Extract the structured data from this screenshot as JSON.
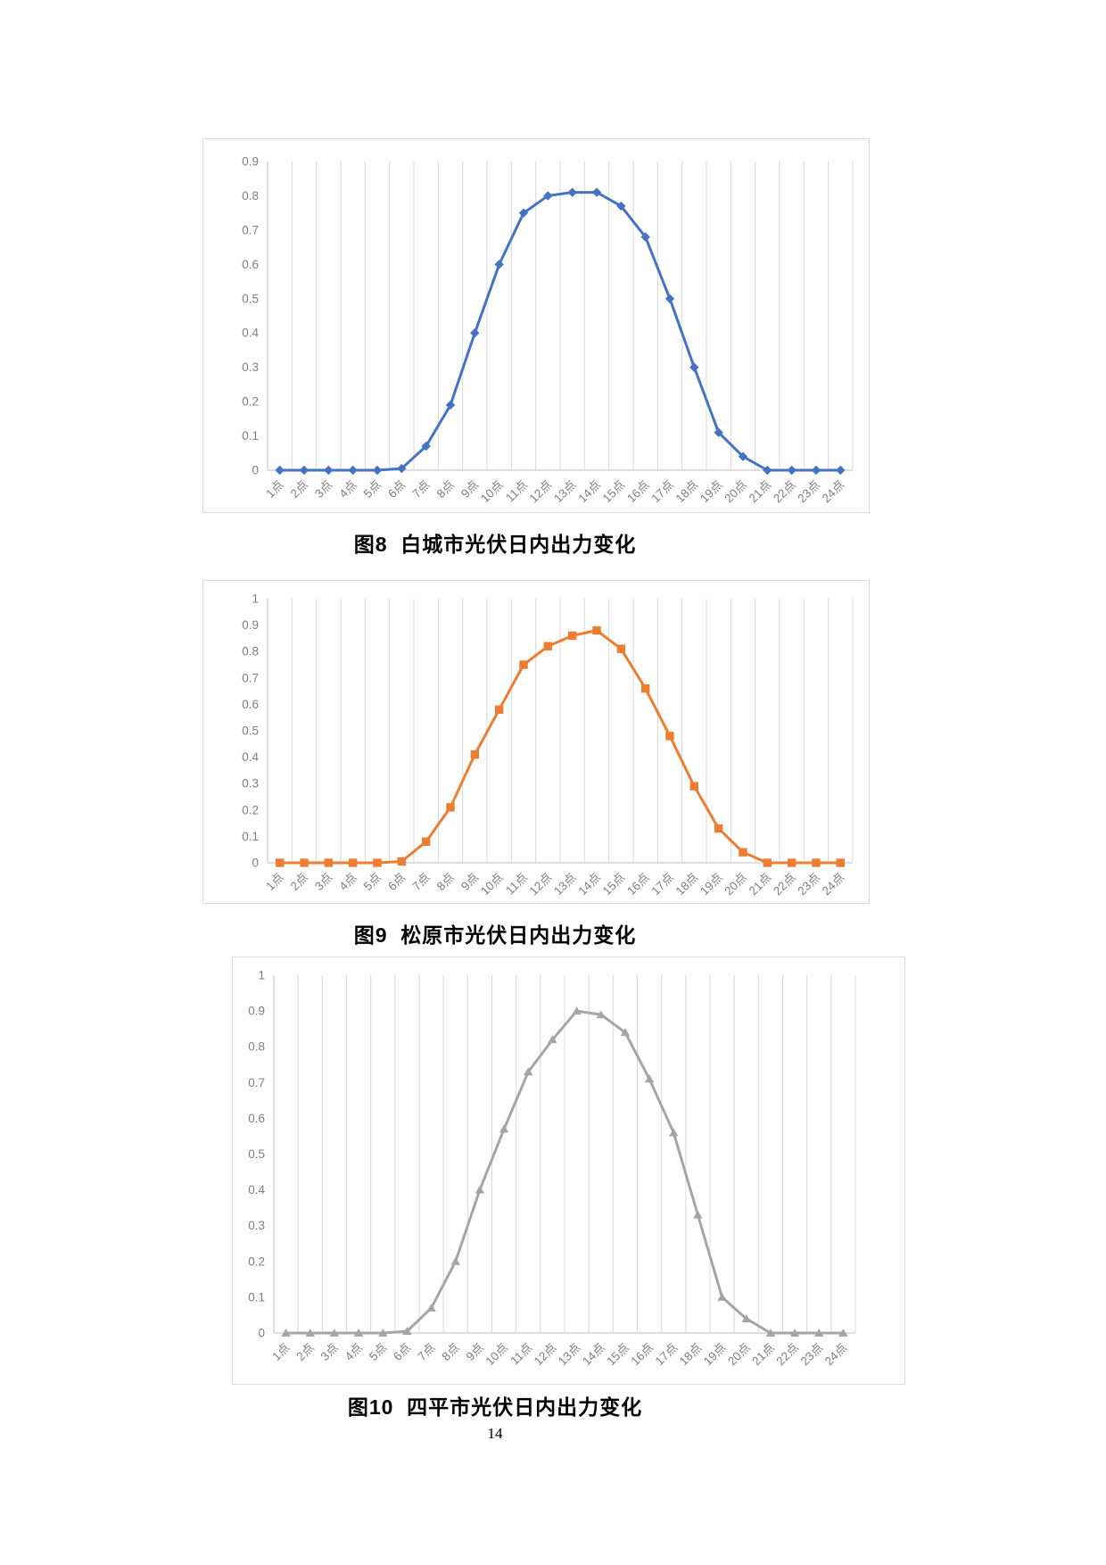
{
  "page": {
    "number": "14",
    "background": "#ffffff"
  },
  "axis_style": {
    "grid_color": "#d9d9d9",
    "axis_color": "#bfbfbf",
    "tick_label_color": "#7f7f7f"
  },
  "chart_data": [
    {
      "type": "line",
      "figure_label": "图8",
      "title": "白城市光伏日内出力变化",
      "caption": "图8  白城市光伏日内出力变化",
      "series_color": "#4472C4",
      "marker": "diamond",
      "legend": "none",
      "grid": "vertical-only",
      "xlabel": "",
      "ylabel": "",
      "ylim": [
        0,
        0.9
      ],
      "y_tick_labels": [
        "0",
        "0.1",
        "0.2",
        "0.3",
        "0.4",
        "0.5",
        "0.6",
        "0.7",
        "0.8",
        "0.9"
      ],
      "categories": [
        "1点",
        "2点",
        "3点",
        "4点",
        "5点",
        "6点",
        "7点",
        "8点",
        "9点",
        "10点",
        "11点",
        "12点",
        "13点",
        "14点",
        "15点",
        "16点",
        "17点",
        "18点",
        "19点",
        "20点",
        "21点",
        "22点",
        "23点",
        "24点"
      ],
      "values": [
        0,
        0,
        0,
        0,
        0,
        0.005,
        0.07,
        0.19,
        0.4,
        0.6,
        0.75,
        0.8,
        0.81,
        0.81,
        0.77,
        0.68,
        0.5,
        0.3,
        0.11,
        0.04,
        0,
        0,
        0,
        0
      ]
    },
    {
      "type": "line",
      "figure_label": "图9",
      "title": "松原市光伏日内出力变化",
      "caption": "图9  松原市光伏日内出力变化",
      "series_color": "#ED7D31",
      "marker": "square",
      "legend": "none",
      "grid": "vertical-only",
      "xlabel": "",
      "ylabel": "",
      "ylim": [
        0,
        1
      ],
      "y_tick_labels": [
        "0",
        "0.1",
        "0.2",
        "0.3",
        "0.4",
        "0.5",
        "0.6",
        "0.7",
        "0.8",
        "0.9",
        "1"
      ],
      "categories": [
        "1点",
        "2点",
        "3点",
        "4点",
        "5点",
        "6点",
        "7点",
        "8点",
        "9点",
        "10点",
        "11点",
        "12点",
        "13点",
        "14点",
        "15点",
        "16点",
        "17点",
        "18点",
        "19点",
        "20点",
        "21点",
        "22点",
        "23点",
        "24点"
      ],
      "values": [
        0,
        0,
        0,
        0,
        0,
        0.005,
        0.08,
        0.21,
        0.41,
        0.58,
        0.75,
        0.82,
        0.86,
        0.88,
        0.81,
        0.66,
        0.48,
        0.29,
        0.13,
        0.04,
        0,
        0,
        0,
        0
      ]
    },
    {
      "type": "line",
      "figure_label": "图10",
      "title": "四平市光伏日内出力变化",
      "caption": "图10  四平市光伏日内出力变化",
      "series_color": "#A5A5A5",
      "marker": "triangle",
      "legend": "none",
      "grid": "vertical-only",
      "xlabel": "",
      "ylabel": "",
      "ylim": [
        0,
        1
      ],
      "y_tick_labels": [
        "0",
        "0.1",
        "0.2",
        "0.3",
        "0.4",
        "0.5",
        "0.6",
        "0.7",
        "0.8",
        "0.9",
        "1"
      ],
      "categories": [
        "1点",
        "2点",
        "3点",
        "4点",
        "5点",
        "6点",
        "7点",
        "8点",
        "9点",
        "10点",
        "11点",
        "12点",
        "13点",
        "14点",
        "15点",
        "16点",
        "17点",
        "18点",
        "19点",
        "20点",
        "21点",
        "22点",
        "23点",
        "24点"
      ],
      "values": [
        0,
        0,
        0,
        0,
        0,
        0.005,
        0.07,
        0.2,
        0.4,
        0.57,
        0.73,
        0.82,
        0.9,
        0.89,
        0.84,
        0.71,
        0.56,
        0.33,
        0.1,
        0.04,
        0,
        0,
        0,
        0
      ]
    }
  ]
}
